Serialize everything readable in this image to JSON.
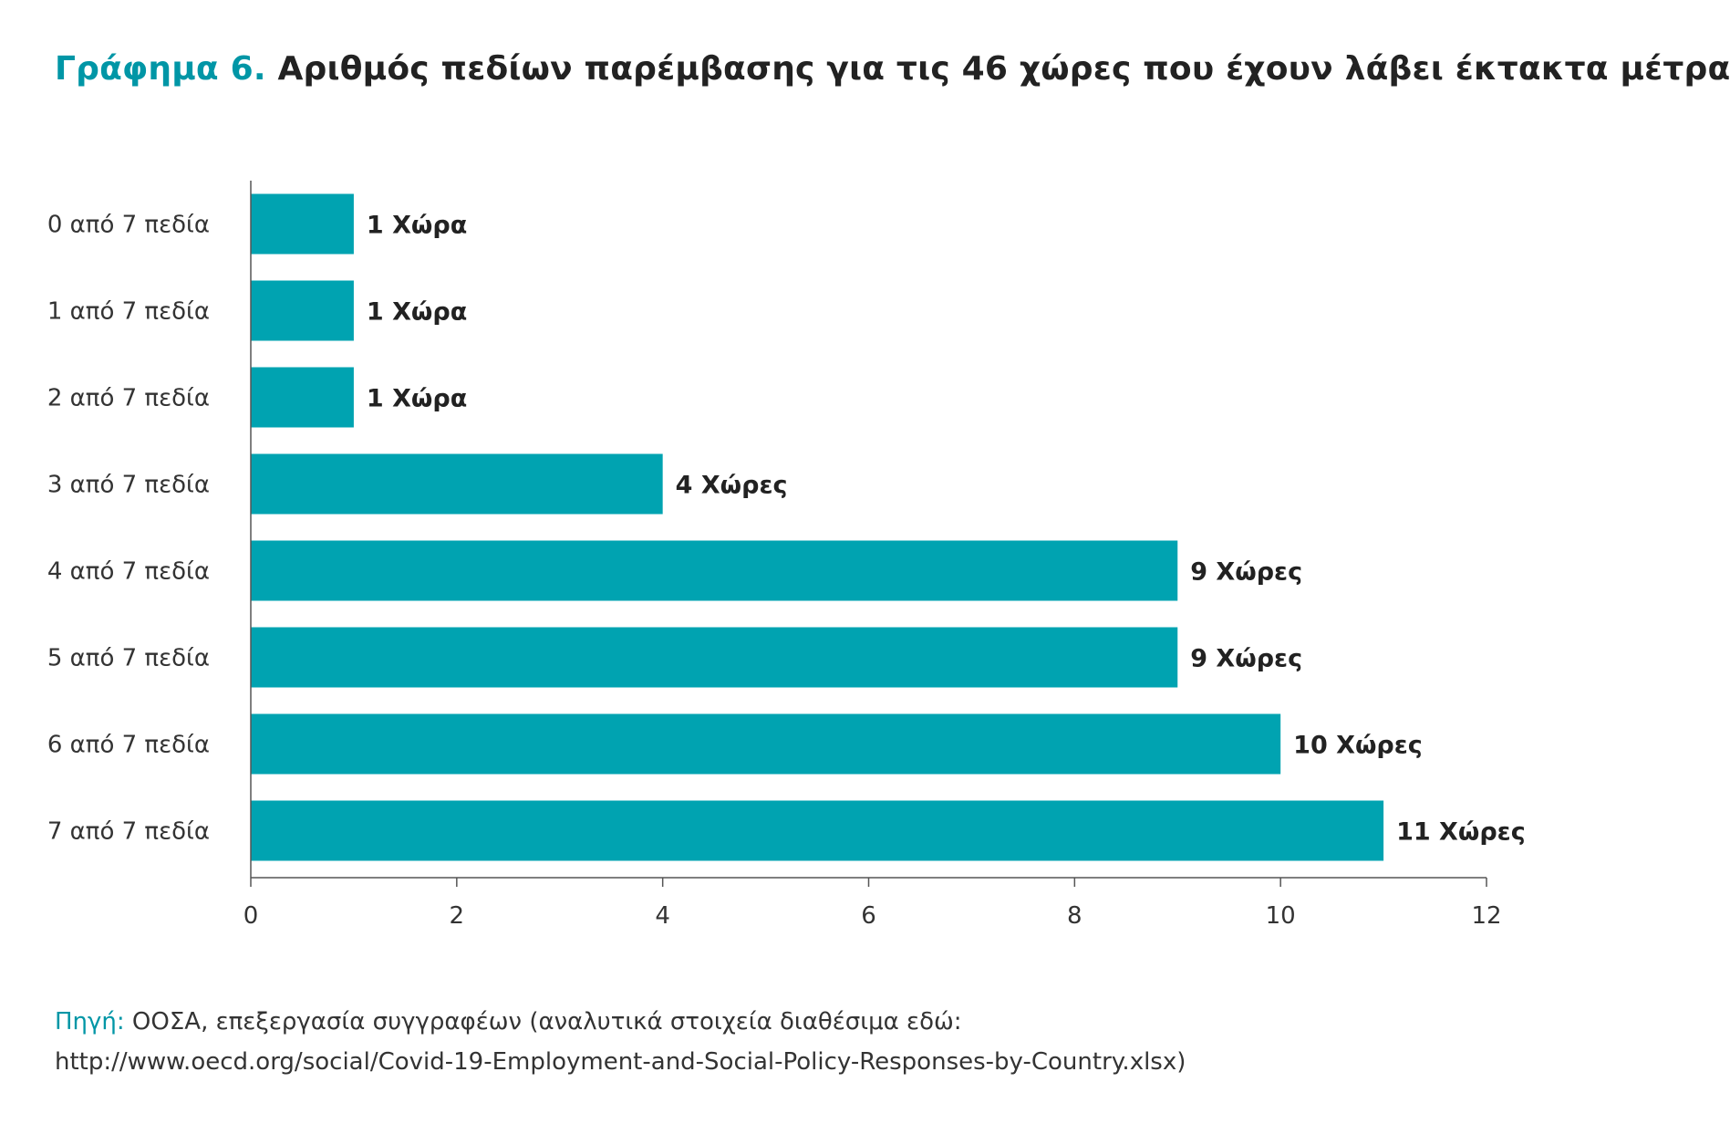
{
  "title": {
    "prefix": "Γράφημα 6.",
    "text": "Αριθμός πεδίων παρέμβασης για τις 46 χώρες που έχουν λάβει έκτακτα μέτρα"
  },
  "source": {
    "prefix": "Πηγή:",
    "line1": "ΟΟΣΑ, επεξεργασία συγγραφέων (αναλυτικά στοιχεία διαθέσιμα εδώ:",
    "line2": "http://www.oecd.org/social/Covid-19-Employment-and-Social-Policy-Responses-by-Country.xlsx)"
  },
  "chart_data": {
    "type": "bar",
    "orientation": "horizontal",
    "categories": [
      "0 από 7 πεδία",
      "1 από 7 πεδία",
      "2 από 7 πεδία",
      "3 από 7 πεδία",
      "4 από 7 πεδία",
      "5 από 7 πεδία",
      "6 από 7 πεδία",
      "7 από 7 πεδία"
    ],
    "values": [
      1,
      1,
      1,
      4,
      9,
      9,
      10,
      11
    ],
    "data_labels": [
      "1 Χώρα",
      "1 Χώρα",
      "1 Χώρα",
      "4 Χώρες",
      "9 Χώρες",
      "9 Χώρες",
      "10 Χώρες",
      "11 Χώρες"
    ],
    "xlim": [
      0,
      12
    ],
    "xticks": [
      0,
      2,
      4,
      6,
      8,
      10,
      12
    ],
    "bar_color": "#00a3b1",
    "grid": false,
    "legend": "none"
  }
}
